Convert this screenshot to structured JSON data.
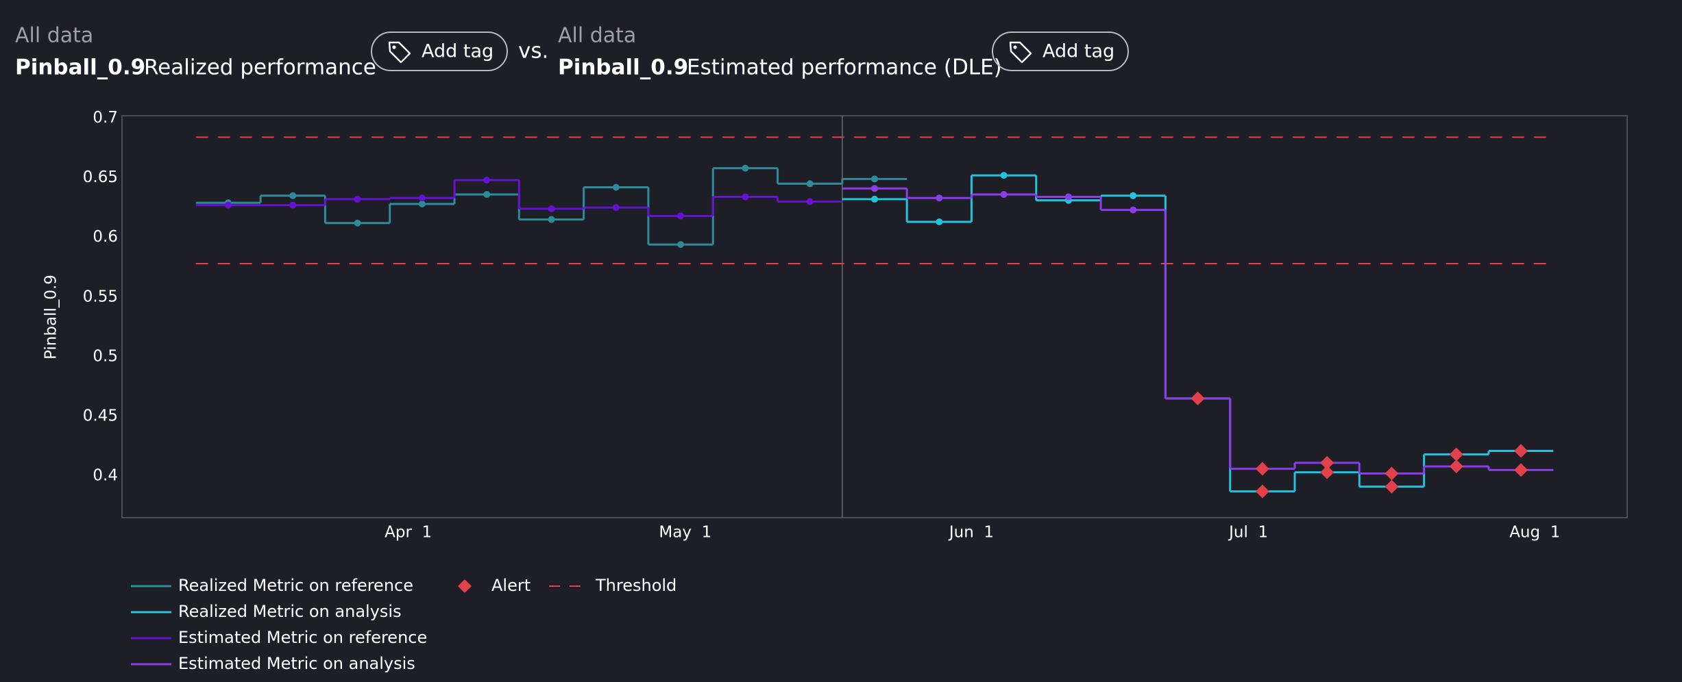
{
  "header": {
    "left": {
      "scope": "All data",
      "metric": "Pinball_0.9",
      "kind": "Realized performance",
      "button": "Add tag"
    },
    "separator": "vs.",
    "right": {
      "scope": "All data",
      "metric": "Pinball_0.9",
      "kind": "Estimated performance (DLE)",
      "button": "Add tag"
    }
  },
  "chart_data": {
    "type": "step",
    "y_label": "Pinball_0.9",
    "xlim": [
      "03-01",
      "08-11"
    ],
    "xticks": [
      {
        "value": "04-01",
        "label": "Apr  1"
      },
      {
        "value": "05-01",
        "label": "May  1"
      },
      {
        "value": "06-01",
        "label": "Jun  1"
      },
      {
        "value": "07-01",
        "label": "Jul  1"
      },
      {
        "value": "08-01",
        "label": "Aug  1"
      }
    ],
    "ylim": [
      0.365,
      0.702
    ],
    "yticks": [
      0.4,
      0.45,
      0.5,
      0.55,
      0.6,
      0.65,
      0.7
    ],
    "series": [
      {
        "name": "Realized Metric on reference",
        "color": "#2e8b9a",
        "bins": [
          "03-09",
          "03-16",
          "03-23",
          "03-30",
          "04-06",
          "04-13",
          "04-20",
          "04-27",
          "05-04",
          "05-11",
          "05-18",
          "05-25"
        ],
        "values": [
          0.629,
          0.635,
          0.612,
          0.628,
          0.636,
          0.615,
          0.642,
          0.594,
          0.658,
          0.645,
          0.649
        ]
      },
      {
        "name": "Realized Metric on analysis",
        "color": "#22c3df",
        "bins": [
          "05-18",
          "05-25",
          "06-01",
          "06-08",
          "06-15",
          "06-22",
          "06-29",
          "07-06",
          "07-13",
          "07-20",
          "07-27",
          "08-03"
        ],
        "values": [
          0.632,
          0.613,
          0.652,
          0.631,
          0.635,
          0.465,
          0.387,
          0.403,
          0.391,
          0.418,
          0.421
        ]
      },
      {
        "name": "Estimated Metric on reference",
        "color": "#6512d4",
        "bins": [
          "03-09",
          "03-16",
          "03-23",
          "03-30",
          "04-06",
          "04-13",
          "04-20",
          "04-27",
          "05-04",
          "05-11",
          "05-18"
        ],
        "values": [
          0.627,
          0.627,
          0.632,
          0.633,
          0.648,
          0.624,
          0.625,
          0.618,
          0.634,
          0.63
        ]
      },
      {
        "name": "Estimated Metric on analysis",
        "color": "#8c3de8",
        "bins": [
          "05-18",
          "05-25",
          "06-01",
          "06-08",
          "06-15",
          "06-22",
          "06-29",
          "07-06",
          "07-13",
          "07-20",
          "07-27",
          "08-03"
        ],
        "values": [
          0.641,
          0.633,
          0.636,
          0.634,
          0.623,
          0.465,
          0.406,
          0.411,
          0.402,
          0.408,
          0.405
        ]
      }
    ],
    "alert": {
      "name": "Alert",
      "color": "#e0414a"
    },
    "threshold": {
      "name": "Threshold",
      "color": "#d94848",
      "values": [
        0.578,
        0.684
      ]
    }
  }
}
